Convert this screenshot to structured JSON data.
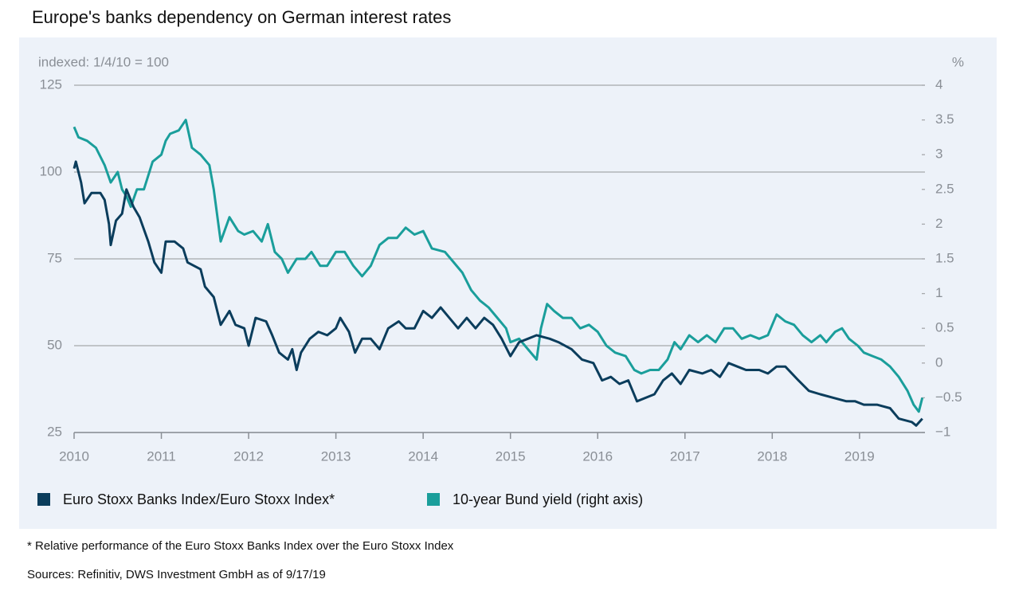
{
  "chart_data": {
    "type": "line",
    "title": "Europe's banks dependency on German interest rates",
    "ylabel": "indexed: 1/4/10 = 100",
    "y2label": "%",
    "footnote": "* Relative performance of the Euro Stoxx Banks Index over the Euro Stoxx Index",
    "source": "Sources: Refinitiv, DWS Investment GmbH as of 9/17/19",
    "xlim": [
      2010,
      2019.75
    ],
    "xticks": [
      2010,
      2011,
      2012,
      2013,
      2014,
      2015,
      2016,
      2017,
      2018,
      2019
    ],
    "ylim": [
      25,
      125
    ],
    "yticks": [
      25,
      50,
      75,
      100,
      125
    ],
    "y2lim": [
      -1,
      4
    ],
    "y2ticks": [
      {
        "value": -1,
        "label": "−1"
      },
      {
        "value": -0.5,
        "label": "−0.5"
      },
      0,
      0.5,
      1,
      1.5,
      2,
      2.5,
      3,
      3.5,
      4
    ],
    "grid": true,
    "legend": "bottom",
    "series": [
      {
        "name": "Euro Stoxx Banks Index/Euro Stoxx Index*",
        "color": "#0b3d5c",
        "x": [
          2010.0,
          2010.02,
          2010.08,
          2010.12,
          2010.2,
          2010.3,
          2010.35,
          2010.4,
          2010.42,
          2010.48,
          2010.55,
          2010.6,
          2010.68,
          2010.75,
          2010.85,
          2010.92,
          2011.0,
          2011.05,
          2011.15,
          2011.25,
          2011.3,
          2011.45,
          2011.5,
          2011.6,
          2011.68,
          2011.78,
          2011.85,
          2011.95,
          2012.0,
          2012.08,
          2012.2,
          2012.27,
          2012.35,
          2012.45,
          2012.5,
          2012.55,
          2012.6,
          2012.7,
          2012.8,
          2012.9,
          2013.0,
          2013.05,
          2013.15,
          2013.22,
          2013.3,
          2013.4,
          2013.5,
          2013.6,
          2013.72,
          2013.8,
          2013.9,
          2014.0,
          2014.1,
          2014.2,
          2014.3,
          2014.4,
          2014.5,
          2014.6,
          2014.7,
          2014.8,
          2014.9,
          2015.0,
          2015.1,
          2015.2,
          2015.3,
          2015.45,
          2015.55,
          2015.7,
          2015.82,
          2015.95,
          2016.05,
          2016.15,
          2016.25,
          2016.35,
          2016.45,
          2016.55,
          2016.65,
          2016.75,
          2016.85,
          2016.95,
          2017.05,
          2017.2,
          2017.3,
          2017.4,
          2017.5,
          2017.6,
          2017.7,
          2017.85,
          2017.95,
          2018.05,
          2018.15,
          2018.3,
          2018.42,
          2018.55,
          2018.7,
          2018.85,
          2018.95,
          2019.05,
          2019.2,
          2019.35,
          2019.45,
          2019.6,
          2019.65,
          2019.72
        ],
        "values": [
          101,
          103,
          97,
          91,
          94,
          94,
          92,
          85,
          79,
          86,
          88,
          95,
          90,
          87,
          80,
          74,
          71,
          80,
          80,
          78,
          74,
          72,
          67,
          64,
          56,
          60,
          56,
          55,
          50,
          58,
          57,
          53,
          48,
          46,
          49,
          43,
          48,
          52,
          54,
          53,
          55,
          58,
          54,
          48,
          52,
          52,
          49,
          55,
          57,
          55,
          55,
          60,
          58,
          61,
          58,
          55,
          58,
          55,
          58,
          56,
          52,
          47,
          51,
          52,
          53,
          52,
          51,
          49,
          46,
          45,
          40,
          41,
          39,
          40,
          34,
          35,
          36,
          40,
          42,
          39,
          43,
          42,
          43,
          41,
          45,
          44,
          43,
          43,
          42,
          44,
          44,
          40,
          37,
          36,
          35,
          34,
          34,
          33,
          33,
          32,
          29,
          28,
          27,
          29
        ]
      },
      {
        "name": "10-year Bund yield (right axis)",
        "color": "#1a9e9b",
        "axis": "y2",
        "x": [
          2010.0,
          2010.05,
          2010.15,
          2010.25,
          2010.35,
          2010.42,
          2010.5,
          2010.55,
          2010.6,
          2010.65,
          2010.72,
          2010.8,
          2010.9,
          2011.0,
          2011.05,
          2011.1,
          2011.2,
          2011.28,
          2011.35,
          2011.45,
          2011.55,
          2011.6,
          2011.68,
          2011.78,
          2011.88,
          2011.95,
          2012.05,
          2012.15,
          2012.22,
          2012.3,
          2012.38,
          2012.45,
          2012.55,
          2012.65,
          2012.72,
          2012.82,
          2012.9,
          2013.0,
          2013.1,
          2013.2,
          2013.3,
          2013.4,
          2013.5,
          2013.6,
          2013.7,
          2013.8,
          2013.9,
          2014.0,
          2014.1,
          2014.25,
          2014.35,
          2014.45,
          2014.55,
          2014.65,
          2014.75,
          2014.85,
          2014.95,
          2015.0,
          2015.1,
          2015.2,
          2015.3,
          2015.35,
          2015.42,
          2015.5,
          2015.6,
          2015.7,
          2015.8,
          2015.9,
          2016.0,
          2016.1,
          2016.2,
          2016.32,
          2016.42,
          2016.5,
          2016.6,
          2016.7,
          2016.8,
          2016.88,
          2016.95,
          2017.05,
          2017.15,
          2017.25,
          2017.35,
          2017.45,
          2017.55,
          2017.65,
          2017.75,
          2017.85,
          2017.95,
          2018.05,
          2018.15,
          2018.25,
          2018.35,
          2018.45,
          2018.55,
          2018.62,
          2018.72,
          2018.8,
          2018.88,
          2018.98,
          2019.05,
          2019.15,
          2019.25,
          2019.35,
          2019.45,
          2019.55,
          2019.62,
          2019.68,
          2019.72
        ],
        "values": [
          3.4,
          3.25,
          3.2,
          3.1,
          2.85,
          2.6,
          2.75,
          2.5,
          2.4,
          2.25,
          2.5,
          2.5,
          2.9,
          3.0,
          3.2,
          3.3,
          3.35,
          3.5,
          3.1,
          3.0,
          2.85,
          2.5,
          1.75,
          2.1,
          1.9,
          1.85,
          1.9,
          1.75,
          2.0,
          1.6,
          1.5,
          1.3,
          1.5,
          1.5,
          1.6,
          1.4,
          1.4,
          1.6,
          1.6,
          1.4,
          1.25,
          1.4,
          1.7,
          1.8,
          1.8,
          1.95,
          1.85,
          1.9,
          1.65,
          1.6,
          1.45,
          1.3,
          1.05,
          0.9,
          0.8,
          0.65,
          0.5,
          0.3,
          0.35,
          0.2,
          0.05,
          0.5,
          0.85,
          0.75,
          0.65,
          0.65,
          0.5,
          0.55,
          0.45,
          0.25,
          0.15,
          0.1,
          -0.1,
          -0.15,
          -0.1,
          -0.1,
          0.05,
          0.3,
          0.2,
          0.4,
          0.3,
          0.4,
          0.3,
          0.5,
          0.5,
          0.35,
          0.4,
          0.35,
          0.4,
          0.7,
          0.6,
          0.55,
          0.4,
          0.3,
          0.4,
          0.3,
          0.45,
          0.5,
          0.35,
          0.25,
          0.15,
          0.1,
          0.05,
          -0.05,
          -0.2,
          -0.4,
          -0.6,
          -0.7,
          -0.5
        ]
      }
    ]
  }
}
